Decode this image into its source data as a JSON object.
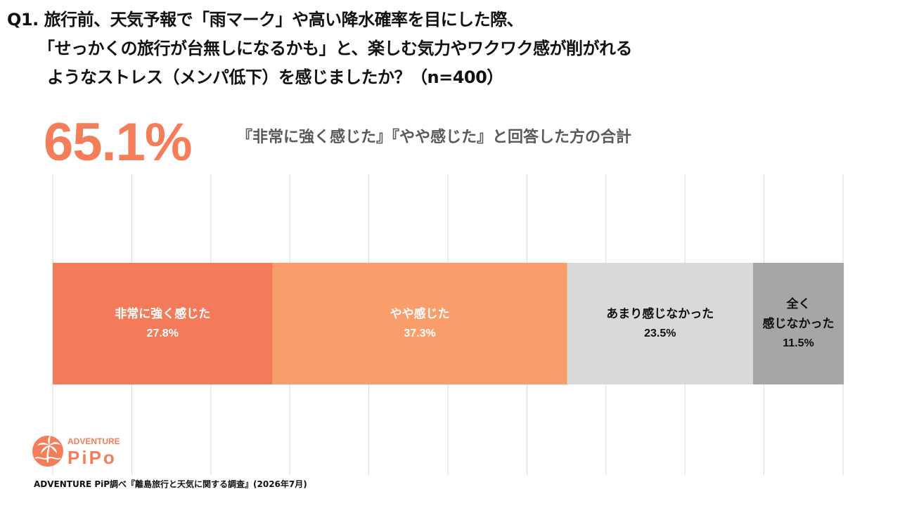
{
  "question": {
    "line1": "Q1. 旅行前、天気予報で「雨マーク」や高い降水確率を目にした際、",
    "line2": "「せっかくの旅行が台無しになるかも」と、楽しむ気力やワクワク感が削がれる",
    "line3": "ようなストレス（メンパ低下）を感じましたか？（n=400）"
  },
  "summary": {
    "value": "65.1%",
    "caption": "『非常に強く感じた』『やや感じた』と回答した方の合計"
  },
  "chart_data": {
    "type": "bar",
    "orientation": "horizontal",
    "stacked": true,
    "categories": [
      "非常に強く感じた",
      "やや感じた",
      "あまり感じなかった",
      "全く感じなかった"
    ],
    "category_display": [
      [
        "非常に強く感じた"
      ],
      [
        "やや感じた"
      ],
      [
        "あまり感じなかった"
      ],
      [
        "全く",
        "感じなかった"
      ]
    ],
    "values": [
      27.8,
      37.3,
      23.5,
      11.5
    ],
    "value_labels": [
      "27.8%",
      "37.3%",
      "23.5%",
      "11.5%"
    ],
    "colors": [
      "#F47B5A",
      "#F99E6B",
      "#D9D9D9",
      "#A6A6A6"
    ],
    "label_colors": [
      "#FFFFFF",
      "#FFFFFF",
      "#111111",
      "#111111"
    ],
    "xlim": [
      0,
      100
    ],
    "grid": true,
    "grid_divisions": 10,
    "grid_color": "#D9D9D9"
  },
  "logo": {
    "top_text": "ADVENTURE",
    "bottom_text": "PiPo",
    "color": "#F47E5A"
  },
  "source": "ADVENTURE PiP調べ『離島旅行と天気に関する調査』(2026年7月)"
}
